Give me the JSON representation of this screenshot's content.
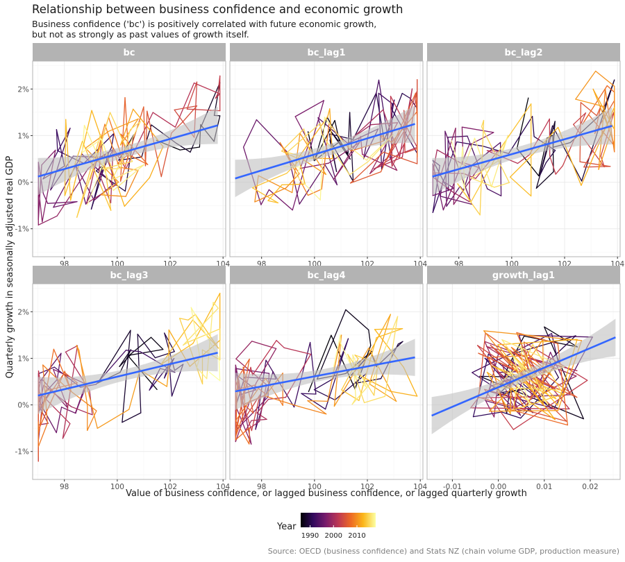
{
  "title": "Relationship between business confidence and economic growth",
  "subtitle_line1": "Business confidence ('bc') is positively correlated with future economic growth,",
  "subtitle_line2": "but not as strongly as past values of growth itself.",
  "source": "Source: OECD (business confidence) and Stats NZ (chain volume GDP, production measure)",
  "legend": {
    "title": "Year",
    "ticks": [
      "1990",
      "2000",
      "2010"
    ],
    "colors": [
      "#000004",
      "#320a5e",
      "#781b6c",
      "#bc3754",
      "#ed6925",
      "#fbb61a",
      "#fcffa4"
    ]
  },
  "colors": {
    "strip_bg": "#b3b3b3",
    "strip_text": "#ffffff",
    "trend_line": "#3366ff",
    "ribbon": "#bfbfbf",
    "grid_major": "#ebebeb",
    "grid_minor": "#f5f5f5",
    "panel_border": "#b3b3b3"
  },
  "chart_data": {
    "type": "line",
    "xlabel": "Value of business confidence, or lagged business confidence, or lagged quarterly growth",
    "ylabel": "Quarterly growth in seasonally adjusted real GDP",
    "ylim": [
      -0.016,
      0.026
    ],
    "y_ticks": [
      -0.01,
      0.0,
      0.01,
      0.02
    ],
    "y_tick_labels": [
      "-1%",
      "0%",
      "1%",
      "2%"
    ],
    "grid": true,
    "legend_position": "bottom",
    "color_by": "Year",
    "year_range": [
      1986,
      2018
    ],
    "panels": [
      {
        "name": "bc",
        "xlim": [
          96.8,
          104.1
        ],
        "x_ticks": [
          98,
          100,
          102,
          104
        ],
        "x_tick_labels": [
          "98",
          "100",
          "102",
          "104"
        ],
        "trend": {
          "x": [
            97.0,
            103.8
          ],
          "y": [
            0.0012,
            0.0122
          ]
        }
      },
      {
        "name": "bc_lag1",
        "xlim": [
          96.8,
          104.1
        ],
        "x_ticks": [
          98,
          100,
          102,
          104
        ],
        "x_tick_labels": [
          "98",
          "100",
          "102",
          "104"
        ],
        "trend": {
          "x": [
            97.0,
            103.8
          ],
          "y": [
            0.0008,
            0.0125
          ]
        }
      },
      {
        "name": "bc_lag2",
        "xlim": [
          96.8,
          104.1
        ],
        "x_ticks": [
          98,
          100,
          102,
          104
        ],
        "x_tick_labels": [
          "98",
          "100",
          "102",
          "104"
        ],
        "trend": {
          "x": [
            97.0,
            103.8
          ],
          "y": [
            0.0012,
            0.0121
          ]
        }
      },
      {
        "name": "bc_lag3",
        "xlim": [
          96.8,
          104.1
        ],
        "x_ticks": [
          98,
          100,
          102,
          104
        ],
        "x_tick_labels": [
          "98",
          "100",
          "102",
          "104"
        ],
        "trend": {
          "x": [
            97.0,
            103.8
          ],
          "y": [
            0.002,
            0.0112
          ]
        }
      },
      {
        "name": "bc_lag4",
        "xlim": [
          96.8,
          104.1
        ],
        "x_ticks": [
          98,
          100,
          102,
          104
        ],
        "x_tick_labels": [
          "98",
          "100",
          "102",
          "104"
        ],
        "trend": {
          "x": [
            97.0,
            103.8
          ],
          "y": [
            0.0029,
            0.0102
          ]
        }
      },
      {
        "name": "growth_lag1",
        "xlim": [
          -0.0155,
          0.0265
        ],
        "x_ticks": [
          -0.01,
          0.0,
          0.01,
          0.02
        ],
        "x_tick_labels": [
          "-0.01",
          "0.00",
          "0.01",
          "0.02"
        ],
        "trend": {
          "x": [
            -0.0145,
            0.0255
          ],
          "y": [
            -0.0023,
            0.0145
          ]
        }
      }
    ]
  }
}
